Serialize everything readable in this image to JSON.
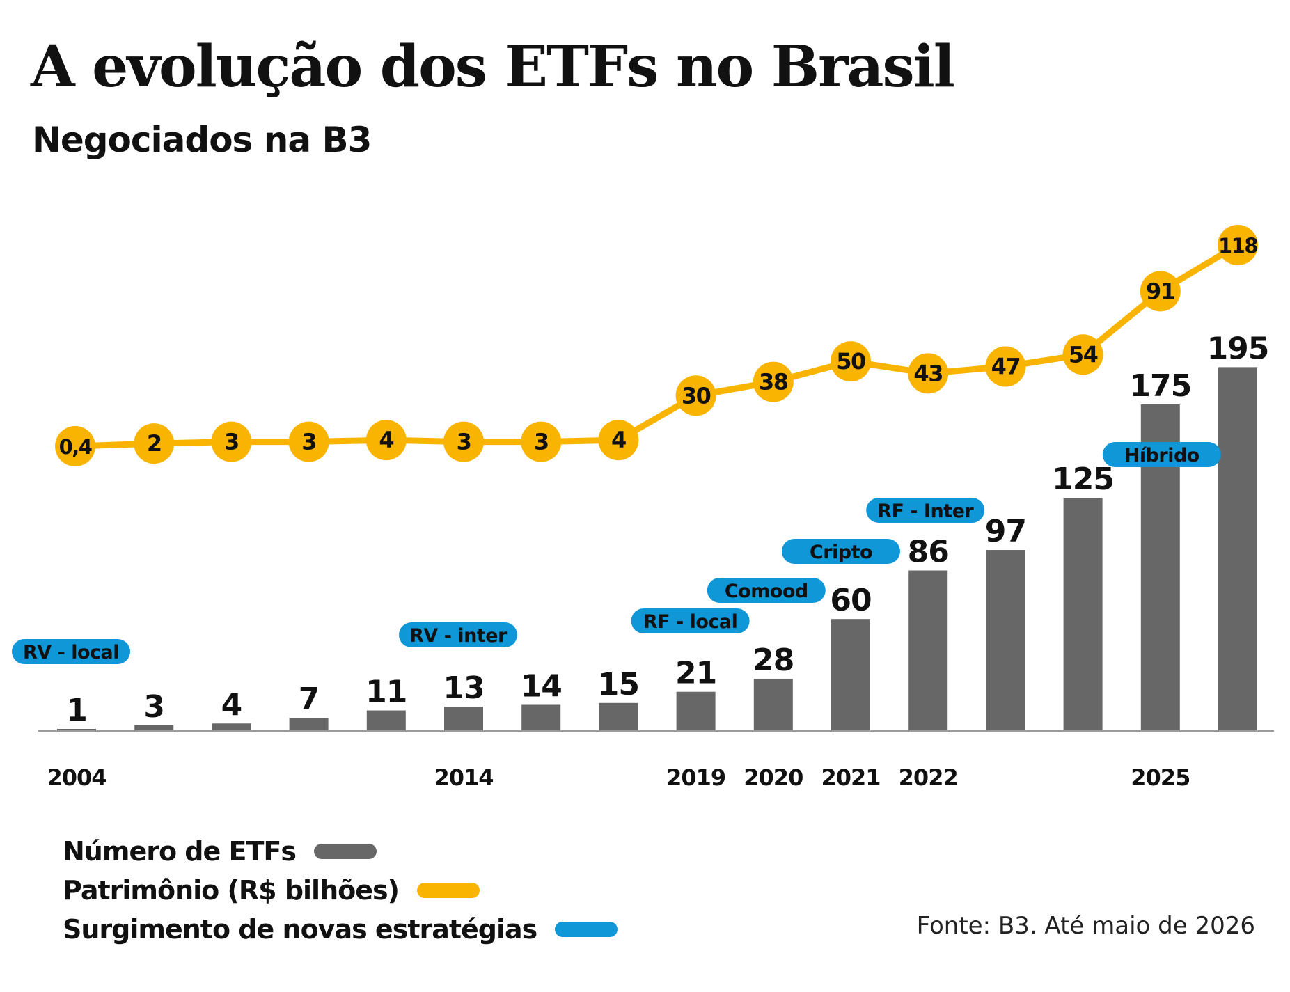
{
  "title": "A evolução dos ETFs no Brasil",
  "subtitle": "Negociados na B3",
  "colors": {
    "bar": "#676767",
    "line": "#f8b400",
    "strategy": "#0f97d8",
    "axis": "#9a9a9a"
  },
  "chart_data": {
    "type": "bar+line",
    "x_labels": [
      "2004",
      "",
      "",
      "",
      "",
      "2014",
      "",
      "",
      "2019",
      "2020",
      "2021",
      "2022",
      "",
      "",
      "2025",
      ""
    ],
    "series": [
      {
        "name": "Número de ETFs",
        "type": "bar",
        "values": [
          1,
          3,
          4,
          7,
          11,
          13,
          14,
          15,
          21,
          28,
          60,
          86,
          97,
          125,
          175,
          195
        ]
      },
      {
        "name": "Patrimônio (R$ bilhões)",
        "type": "line",
        "values": [
          0.4,
          2,
          3,
          3,
          4,
          3,
          3,
          4,
          30,
          38,
          50,
          43,
          47,
          54,
          91,
          118
        ],
        "labels": [
          "0,4",
          "2",
          "3",
          "3",
          "4",
          "3",
          "3",
          "4",
          "30",
          "38",
          "50",
          "43",
          "47",
          "54",
          "91",
          "118"
        ]
      }
    ],
    "strategies": [
      {
        "label": "RV - local",
        "index": 0
      },
      {
        "label": "RV - inter",
        "index": 5
      },
      {
        "label": "RF - local",
        "index": 8
      },
      {
        "label": "Comood",
        "index": 9
      },
      {
        "label": "Cripto",
        "index": 10
      },
      {
        "label": "RF - Inter",
        "index": 11
      },
      {
        "label": "Híbrido",
        "index": 14
      }
    ],
    "legend": [
      {
        "label": "Número de ETFs",
        "color": "#676767"
      },
      {
        "label": "Patrimônio (R$ bilhões)",
        "color": "#f8b400"
      },
      {
        "label": "Surgimento de novas estratégias",
        "color": "#0f97d8"
      }
    ],
    "grid": false,
    "legend_position": "bottom-left"
  },
  "source": "Fonte: B3. Até maio de 2026"
}
